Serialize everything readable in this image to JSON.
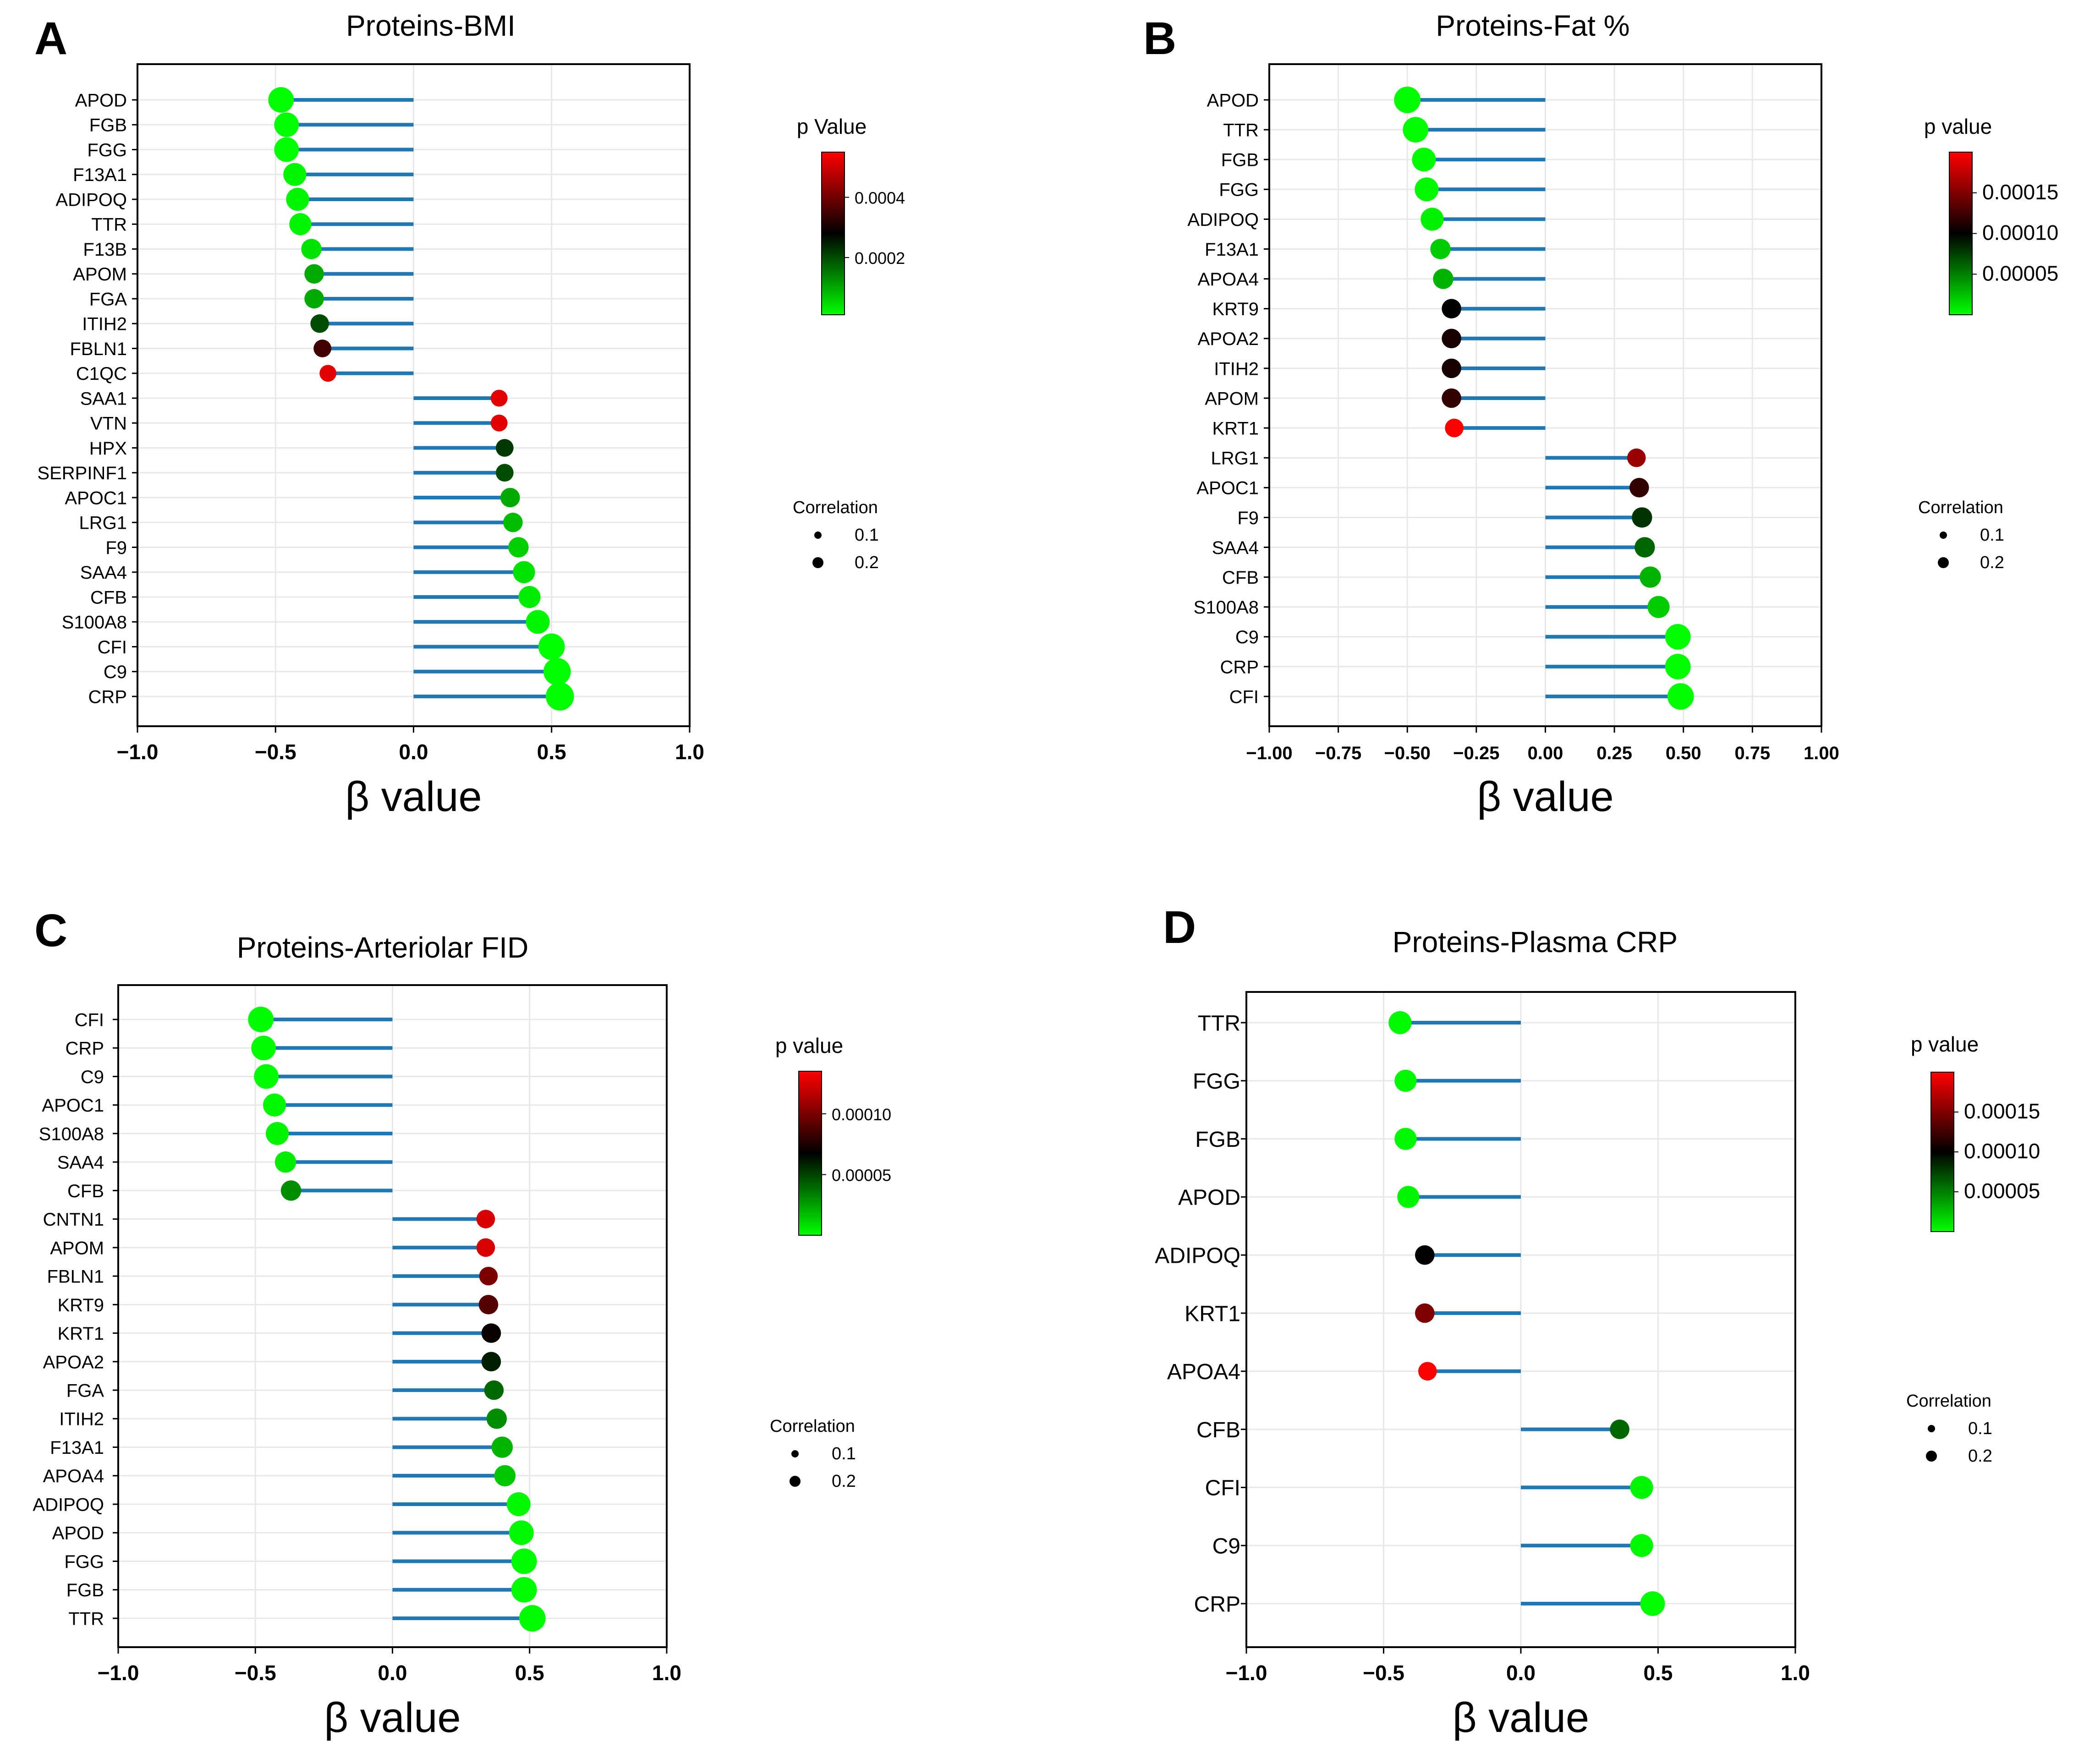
{
  "colors": {
    "stem": "#1f77b4",
    "grid": "#e8e8e8",
    "axis": "#000000",
    "low_p": "#00ff00",
    "mid_p": "#000000",
    "high_p": "#ff0000"
  },
  "chart_data": [
    {
      "type": "lollipop",
      "panel_label": "A",
      "title": "Proteins-BMI",
      "xlabel": "β value",
      "ylabel": "",
      "xlim": [
        -1.0,
        1.0
      ],
      "xticks": [
        -1.0,
        -0.5,
        0.0,
        0.5,
        1.0
      ],
      "xtick_labels": [
        "−1.0",
        "−0.5",
        "0.0",
        "0.5",
        "1.0"
      ],
      "grid": true,
      "color_legend": {
        "title": "p Value",
        "min": 1e-05,
        "max": 0.00055,
        "ticks": [
          0.0004,
          0.0002
        ],
        "tick_labels": [
          "0.0004",
          "0.0002"
        ]
      },
      "size_legend": {
        "title": "Correlation",
        "entries": [
          0.1,
          0.2
        ],
        "labels": [
          "0.1",
          "0.2"
        ]
      },
      "categories": [
        "APOD",
        "FGB",
        "FGG",
        "F13A1",
        "ADIPOQ",
        "TTR",
        "F13B",
        "APOM",
        "FGA",
        "ITIH2",
        "FBLN1",
        "C1QC",
        "SAA1",
        "VTN",
        "HPX",
        "SERPINF1",
        "APOC1",
        "LRG1",
        "F9",
        "SAA4",
        "CFB",
        "S100A8",
        "CFI",
        "C9",
        "CRP"
      ],
      "values": [
        -0.48,
        -0.46,
        -0.46,
        -0.43,
        -0.42,
        -0.41,
        -0.37,
        -0.36,
        -0.36,
        -0.34,
        -0.33,
        -0.31,
        0.31,
        0.31,
        0.33,
        0.33,
        0.35,
        0.36,
        0.38,
        0.4,
        0.42,
        0.45,
        0.5,
        0.52,
        0.53
      ],
      "p_values": [
        1e-05,
        1e-05,
        1e-05,
        2e-05,
        2e-05,
        2e-05,
        4e-05,
        0.0001,
        0.0001,
        0.0002,
        0.00035,
        0.00052,
        0.00052,
        0.00052,
        0.00022,
        0.0002,
        0.0001,
        8e-05,
        6e-05,
        4e-05,
        3e-05,
        2e-05,
        1e-05,
        1e-05,
        1e-05
      ],
      "correlations": [
        0.22,
        0.21,
        0.21,
        0.19,
        0.19,
        0.18,
        0.16,
        0.15,
        0.15,
        0.14,
        0.13,
        0.12,
        0.12,
        0.12,
        0.13,
        0.13,
        0.15,
        0.15,
        0.16,
        0.18,
        0.18,
        0.2,
        0.23,
        0.24,
        0.25
      ]
    },
    {
      "type": "lollipop",
      "panel_label": "B",
      "title": "Proteins-Fat %",
      "xlabel": "β value",
      "ylabel": "",
      "xlim": [
        -1.0,
        1.0
      ],
      "xticks": [
        -1.0,
        -0.75,
        -0.5,
        -0.25,
        0.0,
        0.25,
        0.5,
        0.75,
        1.0
      ],
      "xtick_labels": [
        "−1.00",
        "−0.75",
        "−0.50",
        "−0.25",
        "0.00",
        "0.25",
        "0.50",
        "0.75",
        "1.00"
      ],
      "grid": true,
      "color_legend": {
        "title": "p value",
        "min": 1e-07,
        "max": 0.0002,
        "ticks": [
          0.00015,
          0.0001,
          5e-05
        ],
        "tick_labels": [
          "0.00015",
          "0.00010",
          "0.00005"
        ]
      },
      "size_legend": {
        "title": "Correlation",
        "entries": [
          0.1,
          0.2
        ],
        "labels": [
          "0.1",
          "0.2"
        ]
      },
      "categories": [
        "APOD",
        "TTR",
        "FGB",
        "FGG",
        "ADIPOQ",
        "F13A1",
        "APOA4",
        "KRT9",
        "APOA2",
        "ITIH2",
        "APOM",
        "KRT1",
        "LRG1",
        "APOC1",
        "F9",
        "SAA4",
        "CFB",
        "S100A8",
        "C9",
        "CRP",
        "CFI"
      ],
      "values": [
        -0.5,
        -0.47,
        -0.44,
        -0.43,
        -0.41,
        -0.38,
        -0.37,
        -0.34,
        -0.34,
        -0.34,
        -0.34,
        -0.33,
        0.33,
        0.34,
        0.35,
        0.36,
        0.38,
        0.41,
        0.48,
        0.48,
        0.49
      ],
      "p_values": [
        1e-06,
        1e-06,
        2e-06,
        3e-06,
        5e-06,
        2e-05,
        3e-05,
        0.0001,
        0.00011,
        0.00011,
        0.00012,
        0.0002,
        0.00016,
        0.00012,
        8e-05,
        6e-05,
        3e-05,
        2e-05,
        1e-06,
        1e-06,
        1e-06
      ],
      "correlations": [
        0.23,
        0.22,
        0.2,
        0.2,
        0.19,
        0.16,
        0.16,
        0.15,
        0.15,
        0.15,
        0.15,
        0.14,
        0.14,
        0.15,
        0.16,
        0.16,
        0.17,
        0.18,
        0.22,
        0.22,
        0.23
      ]
    },
    {
      "type": "lollipop",
      "panel_label": "C",
      "title": "Proteins-Arteriolar FID",
      "xlabel": "β value",
      "ylabel": "",
      "xlim": [
        -1.0,
        1.0
      ],
      "xticks": [
        -1.0,
        -0.5,
        0.0,
        0.5,
        1.0
      ],
      "xtick_labels": [
        "−1.0",
        "−0.5",
        "0.0",
        "0.5",
        "1.0"
      ],
      "grid": true,
      "color_legend": {
        "title": "p value",
        "min": 1e-07,
        "max": 0.000135,
        "ticks": [
          0.0001,
          5e-05
        ],
        "tick_labels": [
          "0.00010",
          "0.00005"
        ]
      },
      "size_legend": {
        "title": "Correlation",
        "entries": [
          0.1,
          0.2
        ],
        "labels": [
          "0.1",
          "0.2"
        ]
      },
      "categories": [
        "CFI",
        "CRP",
        "C9",
        "APOC1",
        "S100A8",
        "SAA4",
        "CFB",
        "CNTN1",
        "APOM",
        "FBLN1",
        "KRT9",
        "KRT1",
        "APOA2",
        "FGA",
        "ITIH2",
        "F13A1",
        "APOA4",
        "ADIPOQ",
        "APOD",
        "FGG",
        "FGB",
        "TTR"
      ],
      "values": [
        -0.48,
        -0.47,
        -0.46,
        -0.43,
        -0.42,
        -0.39,
        -0.37,
        0.34,
        0.34,
        0.35,
        0.35,
        0.36,
        0.36,
        0.37,
        0.38,
        0.4,
        0.41,
        0.46,
        0.47,
        0.48,
        0.48,
        0.51
      ],
      "p_values": [
        1e-06,
        1e-06,
        1e-06,
        2e-06,
        3e-06,
        5e-06,
        3e-05,
        0.000125,
        0.000125,
        0.0001,
        9e-05,
        7e-05,
        6e-05,
        4e-05,
        3e-05,
        2e-05,
        1.5e-05,
        2e-06,
        2e-06,
        1e-06,
        1e-06,
        1e-06
      ],
      "correlations": [
        0.22,
        0.21,
        0.21,
        0.19,
        0.19,
        0.17,
        0.16,
        0.14,
        0.14,
        0.14,
        0.15,
        0.15,
        0.15,
        0.15,
        0.16,
        0.17,
        0.17,
        0.2,
        0.21,
        0.22,
        0.22,
        0.23
      ]
    },
    {
      "type": "lollipop",
      "panel_label": "D",
      "title": "Proteins-Plasma CRP",
      "xlabel": "β value",
      "ylabel": "",
      "xlim": [
        -1.0,
        1.0
      ],
      "xticks": [
        -1.0,
        -0.5,
        0.0,
        0.5,
        1.0
      ],
      "xtick_labels": [
        "−1.0",
        "−0.5",
        "0.0",
        "0.5",
        "1.0"
      ],
      "grid": true,
      "color_legend": {
        "title": "p value",
        "min": 1e-07,
        "max": 0.0002,
        "ticks": [
          0.00015,
          0.0001,
          5e-05
        ],
        "tick_labels": [
          "0.00015",
          "0.00010",
          "0.00005"
        ]
      },
      "size_legend": {
        "title": "Correlation",
        "entries": [
          0.1,
          0.2
        ],
        "labels": [
          "0.1",
          "0.2"
        ]
      },
      "categories": [
        "TTR",
        "FGG",
        "FGB",
        "APOD",
        "ADIPOQ",
        "KRT1",
        "APOA4",
        "CFB",
        "CFI",
        "C9",
        "CRP"
      ],
      "values": [
        -0.44,
        -0.42,
        -0.42,
        -0.41,
        -0.35,
        -0.35,
        -0.34,
        0.36,
        0.44,
        0.44,
        0.48
      ],
      "p_values": [
        2e-06,
        3e-06,
        3e-06,
        4e-06,
        0.0001,
        0.00015,
        0.0002,
        6e-05,
        4e-06,
        3e-06,
        1e-06
      ],
      "correlations": [
        0.19,
        0.18,
        0.18,
        0.18,
        0.15,
        0.15,
        0.14,
        0.15,
        0.19,
        0.19,
        0.21
      ]
    }
  ]
}
